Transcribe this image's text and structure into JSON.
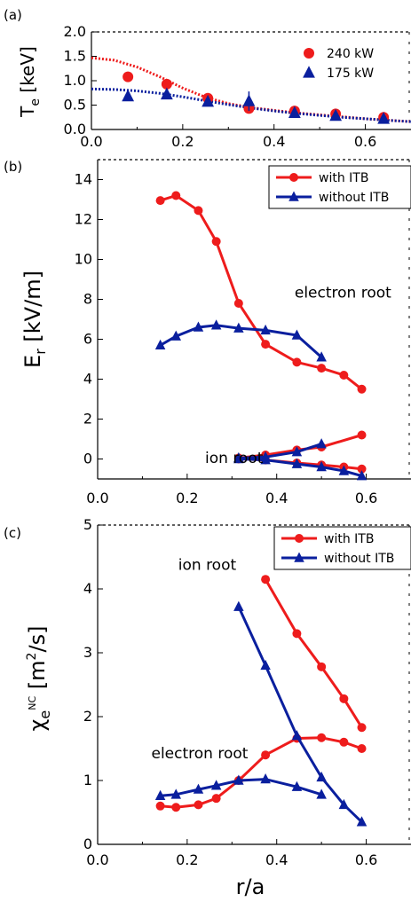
{
  "colors": {
    "red": "#ee1c1c",
    "blue": "#0a1f9e",
    "frame": "#000000"
  },
  "x_label": "r/a",
  "chart_data": [
    {
      "type": "scatter",
      "panel": "(a)",
      "ylabel_main": "T",
      "ylabel_sub": "e",
      "ylabel_unit": "[keV]",
      "xlim": [
        0,
        0.7
      ],
      "ylim": [
        0,
        2.0
      ],
      "x_ticks": [
        "0.0",
        "0.2",
        "0.4",
        "0.6"
      ],
      "y_ticks": [
        "0.0",
        "0.5",
        "1.0",
        "1.5",
        "2.0"
      ],
      "x_tick_values": [
        0,
        0.2,
        0.4,
        0.6
      ],
      "y_tick_values": [
        0,
        0.5,
        1.0,
        1.5,
        2.0
      ],
      "legend_position": "top-right",
      "series": [
        {
          "name": "240 kW",
          "marker": "circle",
          "color": "red",
          "x": [
            0.08,
            0.165,
            0.255,
            0.345,
            0.445,
            0.535,
            0.64
          ],
          "y": [
            1.08,
            0.93,
            0.64,
            0.43,
            0.38,
            0.32,
            0.25
          ],
          "err": [
            0.1,
            0.05,
            0.05,
            0.05,
            0.04,
            0.04,
            0.03
          ]
        },
        {
          "name": "175 kW",
          "marker": "triangle",
          "color": "blue",
          "x": [
            0.08,
            0.165,
            0.255,
            0.345,
            0.445,
            0.535,
            0.64
          ],
          "y": [
            0.68,
            0.72,
            0.57,
            0.58,
            0.34,
            0.28,
            0.22
          ],
          "err": [
            0.03,
            0.04,
            0.04,
            0.2,
            0.03,
            0.03,
            0.03
          ]
        }
      ],
      "fits": [
        {
          "color": "red",
          "x": [
            0,
            0.05,
            0.1,
            0.15,
            0.2,
            0.25,
            0.3,
            0.35,
            0.4,
            0.45,
            0.5,
            0.55,
            0.6,
            0.65,
            0.7
          ],
          "y": [
            1.47,
            1.42,
            1.28,
            1.08,
            0.85,
            0.66,
            0.53,
            0.45,
            0.39,
            0.34,
            0.3,
            0.26,
            0.22,
            0.19,
            0.16
          ]
        },
        {
          "color": "blue",
          "x": [
            0,
            0.05,
            0.1,
            0.15,
            0.2,
            0.25,
            0.3,
            0.35,
            0.4,
            0.45,
            0.5,
            0.55,
            0.6,
            0.65,
            0.7
          ],
          "y": [
            0.83,
            0.82,
            0.79,
            0.74,
            0.67,
            0.59,
            0.51,
            0.44,
            0.38,
            0.33,
            0.29,
            0.25,
            0.22,
            0.19,
            0.16
          ]
        }
      ]
    },
    {
      "type": "line",
      "panel": "(b)",
      "ylabel_main": "E",
      "ylabel_sub": "r",
      "ylabel_unit": "[kV/m]",
      "xlim": [
        0,
        0.7
      ],
      "ylim": [
        -1,
        15
      ],
      "x_ticks": [
        "0.0",
        "0.2",
        "0.4",
        "0.6"
      ],
      "y_ticks": [
        "0",
        "2",
        "4",
        "6",
        "8",
        "10",
        "12",
        "14"
      ],
      "x_tick_values": [
        0,
        0.2,
        0.4,
        0.6
      ],
      "y_tick_values": [
        0,
        2,
        4,
        6,
        8,
        10,
        12,
        14
      ],
      "legend_position": "top-right",
      "annotations": [
        {
          "text": "electron root",
          "x": 0.44,
          "y": 8.1
        },
        {
          "text": "ion root",
          "x": 0.24,
          "y": -0.2
        }
      ],
      "series": [
        {
          "name": "with ITB",
          "marker": "circle",
          "color": "red",
          "x": [
            0.14,
            0.175,
            0.225,
            0.265,
            0.315,
            0.375,
            0.445,
            0.5,
            0.55,
            0.59
          ],
          "y": [
            12.95,
            13.2,
            12.45,
            10.9,
            7.8,
            5.75,
            4.85,
            4.55,
            4.2,
            3.5
          ]
        },
        {
          "name": "with ITB",
          "marker": "circle",
          "color": "red",
          "legend": false,
          "x": [
            0.315,
            0.375,
            0.445,
            0.5,
            0.59
          ],
          "y": [
            0.05,
            0.2,
            0.45,
            0.6,
            1.2
          ]
        },
        {
          "name": "with ITB",
          "marker": "circle",
          "color": "red",
          "legend": false,
          "x": [
            0.315,
            0.375,
            0.445,
            0.5,
            0.55,
            0.59
          ],
          "y": [
            0.0,
            -0.05,
            -0.2,
            -0.3,
            -0.4,
            -0.5
          ]
        },
        {
          "name": "without ITB",
          "marker": "triangle",
          "color": "blue",
          "x": [
            0.14,
            0.175,
            0.225,
            0.265,
            0.315,
            0.375,
            0.445,
            0.5
          ],
          "y": [
            5.7,
            6.15,
            6.6,
            6.7,
            6.55,
            6.45,
            6.2,
            5.1
          ]
        },
        {
          "name": "without ITB",
          "marker": "triangle",
          "color": "blue",
          "legend": false,
          "x": [
            0.315,
            0.375,
            0.445,
            0.5
          ],
          "y": [
            0.05,
            0.1,
            0.35,
            0.75
          ]
        },
        {
          "name": "without ITB",
          "marker": "triangle",
          "color": "blue",
          "legend": false,
          "x": [
            0.315,
            0.375,
            0.445,
            0.5,
            0.55,
            0.59
          ],
          "y": [
            0.0,
            -0.05,
            -0.25,
            -0.4,
            -0.6,
            -0.85
          ]
        }
      ]
    },
    {
      "type": "line",
      "panel": "(c)",
      "ylabel_main": "χ",
      "ylabel_sub": "e",
      "ylabel_sup": "NC",
      "ylabel_unit": "[m",
      "ylabel_unit_sup": "2",
      "ylabel_unit_end": "/s]",
      "xlim": [
        0,
        0.7
      ],
      "ylim": [
        0,
        5
      ],
      "x_ticks": [
        "0.0",
        "0.2",
        "0.4",
        "0.6"
      ],
      "y_ticks": [
        "0",
        "1",
        "2",
        "3",
        "4",
        "5"
      ],
      "x_tick_values": [
        0,
        0.2,
        0.4,
        0.6
      ],
      "y_tick_values": [
        0,
        1,
        2,
        3,
        4,
        5
      ],
      "legend_position": "top-right",
      "annotations": [
        {
          "text": "ion root",
          "x": 0.18,
          "y": 4.3
        },
        {
          "text": "electron root",
          "x": 0.12,
          "y": 1.35
        }
      ],
      "series": [
        {
          "name": "with ITB",
          "marker": "circle",
          "color": "red",
          "x": [
            0.375,
            0.445,
            0.5,
            0.55,
            0.59
          ],
          "y": [
            4.15,
            3.3,
            2.78,
            2.28,
            1.83
          ]
        },
        {
          "name": "with ITB",
          "marker": "circle",
          "color": "red",
          "legend": false,
          "x": [
            0.14,
            0.175,
            0.225,
            0.265,
            0.315,
            0.375,
            0.445,
            0.5,
            0.55,
            0.59
          ],
          "y": [
            0.6,
            0.58,
            0.62,
            0.72,
            1.0,
            1.4,
            1.66,
            1.67,
            1.6,
            1.5
          ]
        },
        {
          "name": "without ITB",
          "marker": "triangle",
          "color": "blue",
          "x": [
            0.315,
            0.375,
            0.445,
            0.5,
            0.55,
            0.59
          ],
          "y": [
            3.72,
            2.8,
            1.7,
            1.05,
            0.62,
            0.35
          ]
        },
        {
          "name": "without ITB",
          "marker": "triangle",
          "color": "blue",
          "legend": false,
          "x": [
            0.14,
            0.175,
            0.225,
            0.265,
            0.315,
            0.375,
            0.445,
            0.5
          ],
          "y": [
            0.76,
            0.78,
            0.86,
            0.92,
            1.0,
            1.02,
            0.9,
            0.78
          ]
        }
      ]
    }
  ]
}
